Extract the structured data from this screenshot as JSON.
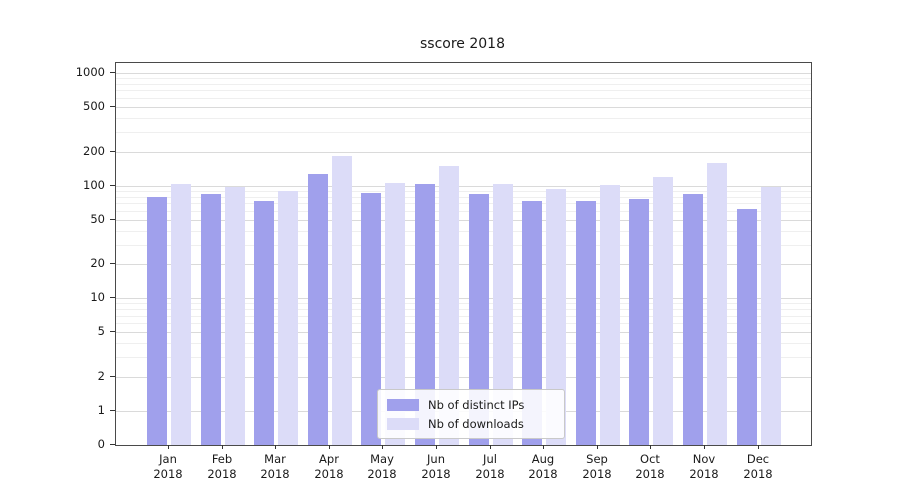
{
  "chart_data": {
    "type": "bar",
    "title": "sscore 2018",
    "xlabel": "",
    "ylabel": "",
    "categories": [
      "Jan",
      "Feb",
      "Mar",
      "Apr",
      "May",
      "Jun",
      "Jul",
      "Aug",
      "Sep",
      "Oct",
      "Nov",
      "Dec"
    ],
    "year_label": "2018",
    "series": [
      {
        "name": "Nb of distinct IPs",
        "color": "#a0a0ec",
        "values": [
          80,
          84,
          73,
          128,
          86,
          104,
          84,
          73,
          73,
          76,
          84,
          62
        ]
      },
      {
        "name": "Nb of downloads",
        "color": "#dcdcf8",
        "values": [
          103,
          97,
          89,
          185,
          105,
          150,
          104,
          93,
          102,
          119,
          158,
          97
        ]
      }
    ],
    "yscale": "symlog",
    "yticks": [
      0,
      1,
      2,
      5,
      10,
      20,
      50,
      100,
      200,
      500,
      1000
    ],
    "ylim": [
      0,
      1200
    ],
    "grid": "horizontal",
    "legend_position": "bottom-center"
  },
  "colors": {
    "grid_major": "#dadada",
    "grid_minor": "#efefef",
    "axis": "#4a4a4a",
    "text": "#1a1a1a"
  }
}
